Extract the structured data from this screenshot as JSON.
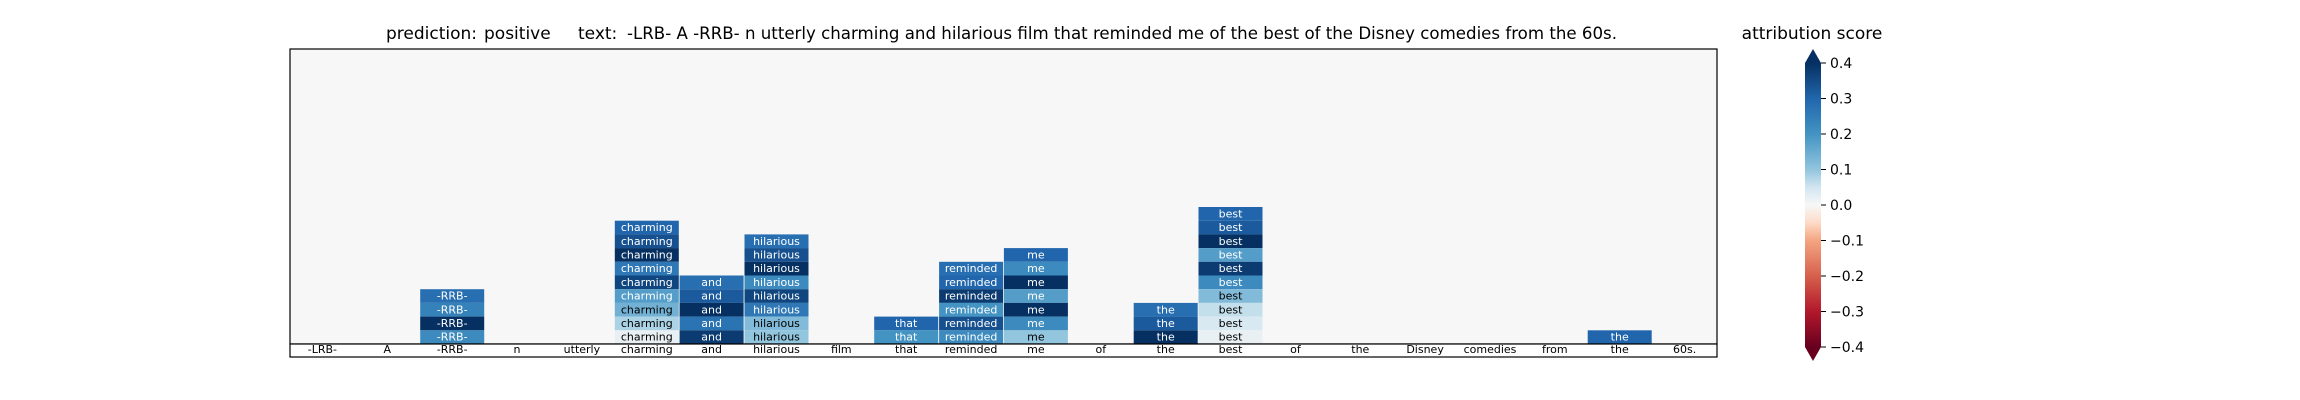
{
  "header": {
    "prediction_label": "prediction:",
    "prediction_value": "positive",
    "text_label": "text:",
    "text_value": "-LRB- A -RRB- n utterly charming and hilarious film that reminded me of the best of the Disney comedies from the 60s."
  },
  "colorbar": {
    "title": "attribution score",
    "ticks": [
      "0.4",
      "0.3",
      "0.2",
      "0.1",
      "0.0",
      "−0.1",
      "−0.2",
      "−0.3",
      "−0.4"
    ],
    "min": -0.4,
    "max": 0.4
  },
  "chart_data": {
    "type": "heatmap",
    "title": "prediction:  positive     text:  -LRB- A -RRB- n utterly charming and hilarious film that reminded me of the best of the Disney comedies from the 60s.",
    "tokens": [
      "-LRB-",
      "A",
      "-RRB-",
      "n",
      "utterly",
      "charming",
      "and",
      "hilarious",
      "film",
      "that",
      "reminded",
      "me",
      "of",
      "the",
      "best",
      "of",
      "the",
      "Disney",
      "comedies",
      "from",
      "the",
      "60s."
    ],
    "color_range": [
      -0.4,
      0.4
    ],
    "colorbar_label": "attribution score",
    "columns": [
      {
        "token_index": 2,
        "label": "-RRB-",
        "values": [
          0.28,
          0.24,
          0.4,
          0.22
        ]
      },
      {
        "token_index": 5,
        "label": "charming",
        "values": [
          0.3,
          0.34,
          0.4,
          0.26,
          0.36,
          0.18,
          0.14,
          0.08,
          0.02
        ]
      },
      {
        "token_index": 6,
        "label": "and",
        "values": [
          0.28,
          0.32,
          0.4,
          0.27,
          0.38
        ]
      },
      {
        "token_index": 7,
        "label": "hilarious",
        "values": [
          0.28,
          0.34,
          0.4,
          0.22,
          0.36,
          0.26,
          0.12,
          0.1
        ]
      },
      {
        "token_index": 9,
        "label": "that",
        "values": [
          0.3,
          0.2
        ]
      },
      {
        "token_index": 10,
        "label": "reminded",
        "values": [
          0.28,
          0.3,
          0.38,
          0.2,
          0.34,
          0.22
        ]
      },
      {
        "token_index": 11,
        "label": "me",
        "values": [
          0.3,
          0.22,
          0.4,
          0.18,
          0.4,
          0.22,
          0.1
        ]
      },
      {
        "token_index": 13,
        "label": "the",
        "values": [
          0.28,
          0.32,
          0.4
        ]
      },
      {
        "token_index": 14,
        "label": "best",
        "values": [
          0.3,
          0.32,
          0.4,
          0.18,
          0.38,
          0.22,
          0.12,
          0.06,
          0.04,
          0.02
        ]
      },
      {
        "token_index": 20,
        "label": "the",
        "values": [
          0.3
        ]
      }
    ]
  }
}
